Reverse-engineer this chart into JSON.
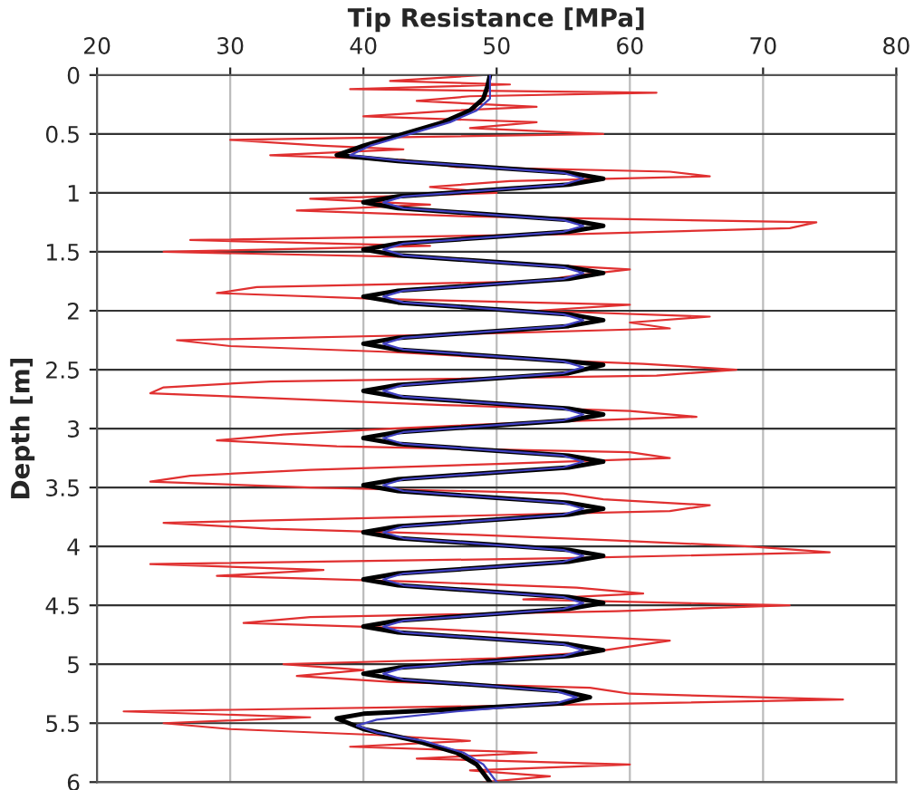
{
  "chart_data": {
    "type": "line",
    "xlabel": "Tip Resistance [MPa]",
    "ylabel": "Depth [m]",
    "xlim": [
      20,
      80
    ],
    "xticks": [
      20,
      30,
      40,
      50,
      60,
      70,
      80
    ],
    "ylim": [
      6,
      0
    ],
    "yticks": [
      0,
      0.5,
      1,
      1.5,
      2,
      2.5,
      3,
      3.5,
      4,
      4.5,
      5,
      5.5,
      6
    ],
    "grid": true,
    "legend": false,
    "marker": "none",
    "line_style": "solid",
    "series": [
      {
        "color": "#e03030",
        "x": [
          49,
          42,
          51,
          39,
          62,
          48,
          44,
          53,
          47,
          40,
          53,
          48,
          58,
          30,
          37,
          43,
          33,
          43,
          47,
          63,
          66,
          51,
          45,
          50,
          36,
          45,
          35,
          48,
          74,
          72,
          56,
          27,
          45,
          25,
          46,
          52,
          60,
          56,
          53,
          32,
          29,
          41,
          60,
          53,
          66,
          60,
          63,
          47,
          26,
          30,
          42,
          50,
          61,
          68,
          62,
          33,
          25,
          24,
          35,
          46,
          60,
          65,
          52,
          42,
          34,
          29,
          38,
          60,
          63,
          50,
          36,
          27,
          24,
          36,
          55,
          58,
          66,
          63,
          44,
          25,
          33,
          48,
          59,
          69,
          75,
          55,
          24,
          37,
          29,
          44,
          56,
          61,
          52,
          72,
          59,
          36,
          31,
          45,
          54,
          63,
          60,
          57,
          50,
          34,
          40,
          35,
          42,
          57,
          60,
          76,
          52,
          22,
          36,
          25,
          30,
          41,
          48,
          39,
          53,
          44,
          60,
          48,
          54,
          49
        ],
        "values": [
          0,
          0.05,
          0.08,
          0.12,
          0.15,
          0.18,
          0.22,
          0.27,
          0.3,
          0.35,
          0.4,
          0.45,
          0.5,
          0.55,
          0.6,
          0.63,
          0.68,
          0.72,
          0.78,
          0.82,
          0.86,
          0.9,
          0.95,
          1,
          1.05,
          1.1,
          1.15,
          1.2,
          1.25,
          1.3,
          1.35,
          1.4,
          1.45,
          1.5,
          1.55,
          1.6,
          1.65,
          1.7,
          1.75,
          1.8,
          1.85,
          1.9,
          1.95,
          2,
          2.05,
          2.1,
          2.15,
          2.2,
          2.25,
          2.3,
          2.35,
          2.4,
          2.45,
          2.5,
          2.55,
          2.6,
          2.65,
          2.7,
          2.75,
          2.8,
          2.85,
          2.9,
          2.95,
          3,
          3.05,
          3.1,
          3.15,
          3.2,
          3.25,
          3.3,
          3.35,
          3.4,
          3.45,
          3.5,
          3.55,
          3.6,
          3.65,
          3.7,
          3.75,
          3.8,
          3.85,
          3.9,
          3.95,
          4,
          4.05,
          4.1,
          4.15,
          4.2,
          4.25,
          4.3,
          4.35,
          4.4,
          4.45,
          4.5,
          4.55,
          4.6,
          4.65,
          4.7,
          4.75,
          4.8,
          4.85,
          4.9,
          4.95,
          5,
          5.05,
          5.1,
          5.15,
          5.2,
          5.25,
          5.3,
          5.35,
          5.4,
          5.45,
          5.5,
          5.55,
          5.6,
          5.65,
          5.7,
          5.75,
          5.8,
          5.85,
          5.9,
          5.95,
          6
        ]
      },
      {
        "color": "#000000",
        "x": [
          49.5,
          49.3,
          49,
          48,
          46,
          43,
          40,
          38,
          42.6,
          49,
          55.4,
          58,
          55.4,
          49,
          42.6,
          40,
          42.6,
          49,
          55.4,
          58,
          55.4,
          49,
          42.6,
          40,
          42.6,
          49,
          55.4,
          58,
          55.4,
          49,
          42.6,
          40,
          42.6,
          49,
          55.4,
          58,
          55.4,
          49,
          42.6,
          40,
          42.6,
          49,
          55.4,
          58,
          55.4,
          49,
          42.6,
          40,
          42.6,
          49,
          55.4,
          58,
          55.4,
          49,
          42.6,
          40,
          42.6,
          49,
          55.4,
          58,
          55.4,
          49,
          42.6,
          40,
          42.6,
          49,
          55.4,
          58,
          55.4,
          49,
          42.6,
          40,
          42.6,
          49,
          55.4,
          58,
          55.4,
          49,
          42.6,
          40,
          42.6,
          49,
          55.4,
          58,
          55.4,
          49,
          42.6,
          40,
          42.6,
          49,
          55.4,
          58,
          55.4,
          49,
          42.6,
          40,
          42.6,
          49,
          55,
          57,
          55,
          47,
          40,
          38,
          40,
          44,
          47,
          48.5,
          49.5
        ],
        "values": [
          0,
          0.1,
          0.2,
          0.3,
          0.4,
          0.5,
          0.6,
          0.68,
          0.73,
          0.78,
          0.83,
          0.88,
          0.93,
          0.98,
          1.03,
          1.08,
          1.13,
          1.18,
          1.23,
          1.28,
          1.33,
          1.38,
          1.43,
          1.48,
          1.53,
          1.58,
          1.63,
          1.68,
          1.73,
          1.78,
          1.83,
          1.88,
          1.93,
          1.98,
          2.03,
          2.08,
          2.13,
          2.18,
          2.23,
          2.28,
          2.33,
          2.38,
          2.43,
          2.46,
          2.53,
          2.58,
          2.63,
          2.68,
          2.73,
          2.78,
          2.83,
          2.88,
          2.93,
          2.98,
          3.03,
          3.08,
          3.13,
          3.18,
          3.23,
          3.28,
          3.33,
          3.38,
          3.43,
          3.48,
          3.53,
          3.58,
          3.63,
          3.68,
          3.73,
          3.78,
          3.83,
          3.88,
          3.93,
          3.98,
          4.03,
          4.08,
          4.13,
          4.18,
          4.23,
          4.28,
          4.33,
          4.38,
          4.43,
          4.48,
          4.53,
          4.58,
          4.63,
          4.68,
          4.73,
          4.78,
          4.83,
          4.88,
          4.93,
          4.98,
          5.03,
          5.08,
          5.13,
          5.18,
          5.23,
          5.28,
          5.33,
          5.38,
          5.42,
          5.46,
          5.55,
          5.65,
          5.75,
          5.85,
          6
        ]
      },
      {
        "color": "#4040c0",
        "x": [
          49.5,
          49.5,
          49.5,
          48.5,
          46.5,
          43.5,
          40.5,
          39,
          43,
          49,
          55,
          56.5,
          55,
          49,
          43,
          41.5,
          43,
          49,
          55,
          56.5,
          55,
          49,
          43,
          41.5,
          43,
          49,
          55,
          56.5,
          55,
          49,
          43,
          41.5,
          43,
          49,
          55,
          56.5,
          55,
          49,
          43,
          41.5,
          43,
          49,
          55,
          56.5,
          55,
          49,
          43,
          41.5,
          43,
          49,
          55,
          56.5,
          55,
          49,
          43,
          41.5,
          43,
          49,
          55,
          56.5,
          55,
          49,
          43,
          41.5,
          43,
          49,
          55,
          56.5,
          55,
          49,
          43,
          41.5,
          43,
          49,
          55,
          56.5,
          55,
          49,
          43,
          41.5,
          43,
          49,
          55,
          56.5,
          55,
          49,
          43,
          41.5,
          43,
          49,
          55,
          56.5,
          55,
          49,
          43,
          41.5,
          43,
          49,
          54.5,
          56,
          54.5,
          47,
          41,
          39.5,
          41,
          44.5,
          47.5,
          49,
          50
        ],
        "values": [
          0,
          0.1,
          0.2,
          0.3,
          0.4,
          0.5,
          0.6,
          0.68,
          0.73,
          0.78,
          0.83,
          0.88,
          0.93,
          0.98,
          1.03,
          1.08,
          1.13,
          1.18,
          1.23,
          1.28,
          1.33,
          1.38,
          1.43,
          1.48,
          1.53,
          1.58,
          1.63,
          1.68,
          1.73,
          1.78,
          1.83,
          1.88,
          1.93,
          1.98,
          2.03,
          2.08,
          2.13,
          2.18,
          2.23,
          2.28,
          2.33,
          2.38,
          2.43,
          2.48,
          2.53,
          2.58,
          2.63,
          2.68,
          2.73,
          2.78,
          2.83,
          2.88,
          2.93,
          2.98,
          3.03,
          3.08,
          3.13,
          3.18,
          3.23,
          3.28,
          3.33,
          3.38,
          3.43,
          3.48,
          3.53,
          3.58,
          3.63,
          3.68,
          3.73,
          3.78,
          3.83,
          3.88,
          3.93,
          3.98,
          4.03,
          4.08,
          4.13,
          4.18,
          4.23,
          4.28,
          4.33,
          4.38,
          4.43,
          4.48,
          4.53,
          4.58,
          4.63,
          4.68,
          4.73,
          4.78,
          4.83,
          4.88,
          4.93,
          4.98,
          5.03,
          5.08,
          5.13,
          5.18,
          5.23,
          5.28,
          5.33,
          5.4,
          5.47,
          5.52,
          5.58,
          5.65,
          5.75,
          5.85,
          6
        ]
      }
    ]
  }
}
